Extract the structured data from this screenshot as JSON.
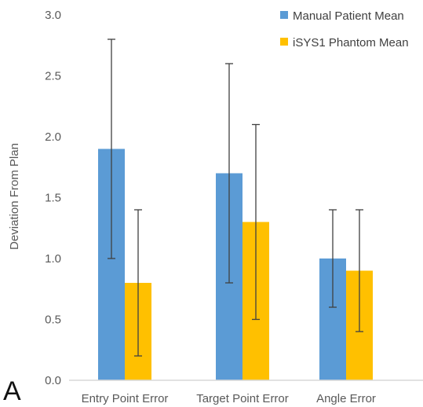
{
  "panel_label": "A",
  "colors": {
    "manual": "#5B9BD5",
    "isys": "#FFC000",
    "axis": "#D9D9D9",
    "errorbar": "#404040"
  },
  "chart_data": {
    "type": "bar",
    "title": "",
    "xlabel": "",
    "ylabel": "Deviation From Plan",
    "ylim": [
      0,
      3
    ],
    "yticks": [
      "0.0",
      "0.5",
      "1.0",
      "1.5",
      "2.0",
      "2.5",
      "3.0"
    ],
    "grid": false,
    "legend_position": "top-right",
    "categories": [
      "Entry Point Error",
      "Target Point Error",
      "Angle Error"
    ],
    "series": [
      {
        "name": "Manual Patient Mean",
        "values": [
          1.9,
          1.7,
          1.0
        ],
        "error_low": [
          1.0,
          0.8,
          0.6
        ],
        "error_high": [
          2.8,
          2.6,
          1.4
        ]
      },
      {
        "name": "iSYS1 Phantom Mean",
        "values": [
          0.8,
          1.3,
          0.9
        ],
        "error_low": [
          0.2,
          0.5,
          0.4
        ],
        "error_high": [
          1.4,
          2.1,
          1.4
        ]
      }
    ]
  }
}
